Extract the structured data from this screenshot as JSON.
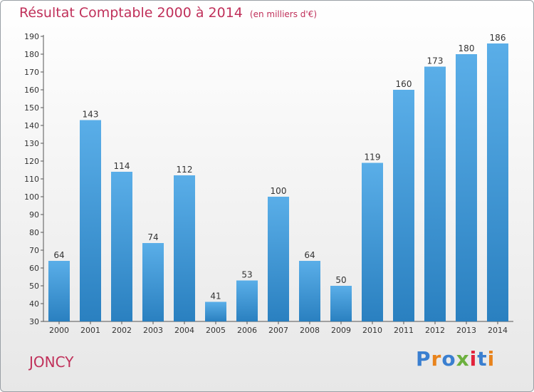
{
  "header": {
    "title": "Résultat Comptable 2000 à 2014",
    "unit": "(en milliers d'€)"
  },
  "footer": {
    "place": "JONCY",
    "brand": "Proxiti",
    "brand_colors": [
      "#3a7fd0",
      "#e8831c",
      "#3a7fd0",
      "#6cb03e",
      "#e2223b",
      "#3a7fd0",
      "#e8831c"
    ]
  },
  "colors": {
    "bar_light": "#5aaee8",
    "bar_dark": "#2a80c0",
    "title": "#c0305a"
  },
  "chart_data": {
    "type": "bar",
    "title": "Résultat Comptable 2000 à 2014",
    "subtitle": "(en milliers d'€)",
    "categories": [
      "2000",
      "2001",
      "2002",
      "2003",
      "2004",
      "2005",
      "2006",
      "2007",
      "2008",
      "2009",
      "2010",
      "2011",
      "2012",
      "2013",
      "2014"
    ],
    "values": [
      64,
      143,
      114,
      74,
      112,
      41,
      53,
      100,
      64,
      50,
      119,
      160,
      173,
      180,
      186
    ],
    "ylim": [
      30,
      190
    ],
    "yticks": [
      30,
      40,
      50,
      60,
      70,
      80,
      90,
      100,
      110,
      120,
      130,
      140,
      150,
      160,
      170,
      180,
      190
    ],
    "grid": false,
    "legend": "none"
  }
}
